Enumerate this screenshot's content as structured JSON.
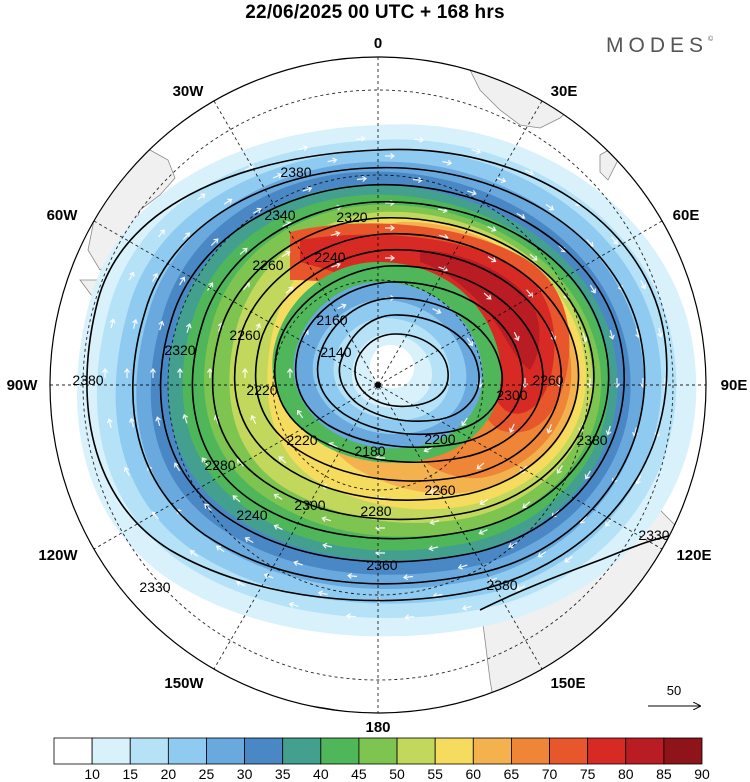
{
  "title": "22/06/2025  00 UTC  + 168 hrs",
  "brand": "MODES",
  "brand_mark": "©",
  "longitude_labels": {
    "top": "0",
    "top_right": "30E",
    "right_upper": "60E",
    "right": "90E",
    "right_lower": "120E",
    "bottom_right": "150E",
    "bottom": "180",
    "bottom_left": "150W",
    "left_lower": "120W",
    "left": "90W",
    "left_upper": "60W",
    "top_left": "30W"
  },
  "contour_labels": [
    "2380",
    "2340",
    "2320",
    "2260",
    "2240",
    "2160",
    "2140",
    "2220",
    "2180",
    "2200",
    "2280",
    "2300",
    "2360",
    "2330",
    "2320",
    "2260",
    "2280",
    "2260",
    "2220",
    "2240",
    "2300",
    "2260",
    "2380",
    "2380",
    "2380",
    "2330"
  ],
  "reference_vector": "50",
  "colorbar": {
    "colors": [
      "#ffffff",
      "#d8f1fb",
      "#b5e2f7",
      "#8fcbf0",
      "#6aa9de",
      "#4a88c5",
      "#43a08f",
      "#4fb65a",
      "#7ec451",
      "#c2d85c",
      "#f5dc5f",
      "#f4b24f",
      "#ef8536",
      "#e8572c",
      "#d82a25",
      "#b91d23",
      "#8f1419"
    ],
    "labels": [
      "10",
      "15",
      "20",
      "25",
      "30",
      "35",
      "40",
      "45",
      "50",
      "55",
      "60",
      "65",
      "70",
      "75",
      "80",
      "85",
      "90"
    ]
  },
  "colors": {
    "land": "#f0f0f0",
    "contour": "#000000",
    "vector": "#ffffff"
  }
}
